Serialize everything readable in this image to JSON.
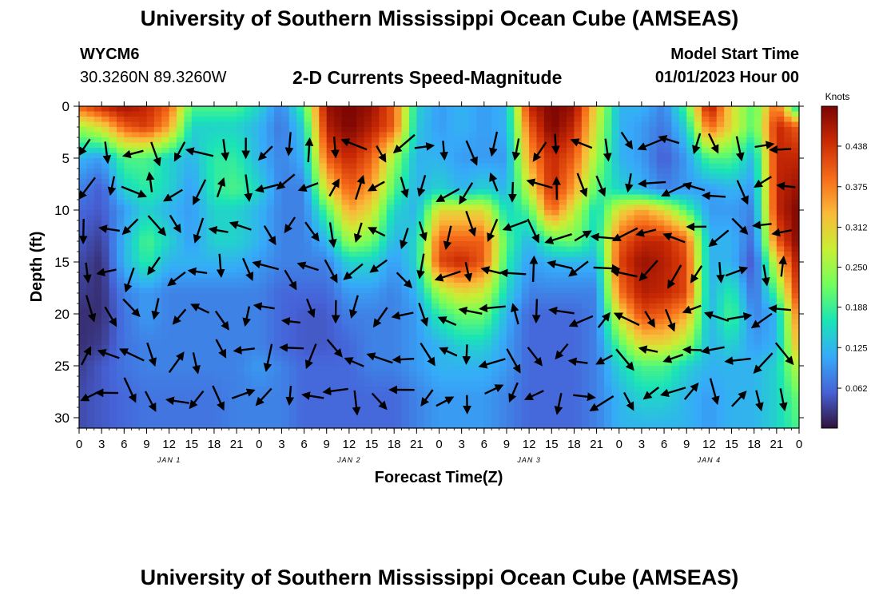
{
  "header": {
    "title": "University of Southern Mississippi Ocean Cube (AMSEAS)",
    "station": "WYCM6",
    "coords": "30.3260N  89.3260W",
    "subtitle": "2-D Currents Speed-Magnitude",
    "model_start_label": "Model Start Time",
    "model_start_value": "01/01/2023 Hour 00"
  },
  "footer": {
    "title": "University of Southern Mississippi Ocean Cube (AMSEAS)"
  },
  "chart_data": {
    "type": "heatmap",
    "title": "2-D Currents Speed-Magnitude",
    "xlabel": "Forecast Time(Z)",
    "ylabel": "Depth (ft)",
    "x_range_hours": [
      0,
      96
    ],
    "x_tick_hours": [
      0,
      3,
      6,
      9,
      12,
      15,
      18,
      21,
      24,
      27,
      30,
      33,
      36,
      39,
      42,
      45,
      48,
      51,
      54,
      57,
      60,
      63,
      66,
      69,
      72,
      75,
      78,
      81,
      84,
      87,
      90,
      93,
      96
    ],
    "x_tick_labels": [
      "0",
      "3",
      "6",
      "9",
      "12",
      "15",
      "18",
      "21",
      "0",
      "3",
      "6",
      "9",
      "12",
      "15",
      "18",
      "21",
      "0",
      "3",
      "6",
      "9",
      "12",
      "15",
      "18",
      "21",
      "0",
      "3",
      "6",
      "9",
      "12",
      "15",
      "18",
      "21",
      "0"
    ],
    "day_labels": [
      {
        "hour": 12,
        "label": "JAN 1"
      },
      {
        "hour": 36,
        "label": "JAN 2"
      },
      {
        "hour": 60,
        "label": "JAN 3"
      },
      {
        "hour": 84,
        "label": "JAN 4"
      }
    ],
    "y_range_ft": [
      0,
      31
    ],
    "y_ticks": [
      0,
      5,
      10,
      15,
      20,
      25,
      30
    ],
    "y_inverted": true,
    "colorbar": {
      "unit": "Knots",
      "range": [
        0,
        0.5
      ],
      "ticks": [
        0.062,
        0.125,
        0.188,
        0.25,
        0.312,
        0.375,
        0.438
      ],
      "tick_labels": [
        "0.062",
        "0.125",
        "0.188",
        "0.250",
        "0.312",
        "0.375",
        "0.438"
      ],
      "colors": [
        "#30123b",
        "#4662d7",
        "#36aaf9",
        "#1ae4b6",
        "#72fe5e",
        "#c8ef34",
        "#faba39",
        "#f66b19",
        "#ca2a04",
        "#7a0403"
      ]
    },
    "speed_column_hours": [
      0,
      3,
      6,
      9,
      12,
      15,
      18,
      21,
      24,
      27,
      30,
      33,
      36,
      39,
      42,
      45,
      48,
      51,
      54,
      57,
      60,
      63,
      66,
      69,
      72,
      75,
      78,
      81,
      84,
      87,
      90,
      93,
      96
    ],
    "speed_row_depths_ft": [
      0,
      2,
      5,
      8,
      10,
      13,
      15,
      18,
      20,
      23,
      25,
      28,
      31
    ],
    "speed_knots": [
      [
        0.4,
        0.45,
        0.48,
        0.45,
        0.4,
        0.2,
        0.2,
        0.2,
        0.15,
        0.08,
        0.2,
        0.48,
        0.5,
        0.48,
        0.4,
        0.15,
        0.1,
        0.12,
        0.1,
        0.12,
        0.45,
        0.5,
        0.48,
        0.3,
        0.12,
        0.12,
        0.08,
        0.2,
        0.48,
        0.3,
        0.2,
        0.4,
        0.12
      ],
      [
        0.25,
        0.3,
        0.4,
        0.43,
        0.35,
        0.15,
        0.15,
        0.15,
        0.12,
        0.07,
        0.15,
        0.46,
        0.5,
        0.46,
        0.4,
        0.14,
        0.1,
        0.12,
        0.1,
        0.12,
        0.4,
        0.5,
        0.45,
        0.28,
        0.12,
        0.1,
        0.07,
        0.15,
        0.4,
        0.3,
        0.2,
        0.45,
        0.4
      ],
      [
        0.12,
        0.1,
        0.2,
        0.2,
        0.15,
        0.12,
        0.18,
        0.18,
        0.12,
        0.08,
        0.12,
        0.4,
        0.45,
        0.4,
        0.25,
        0.12,
        0.12,
        0.1,
        0.1,
        0.1,
        0.35,
        0.45,
        0.4,
        0.25,
        0.12,
        0.1,
        0.05,
        0.1,
        0.2,
        0.2,
        0.12,
        0.45,
        0.45
      ],
      [
        0.08,
        0.05,
        0.15,
        0.18,
        0.15,
        0.1,
        0.18,
        0.2,
        0.15,
        0.08,
        0.08,
        0.3,
        0.4,
        0.35,
        0.2,
        0.12,
        0.15,
        0.12,
        0.15,
        0.12,
        0.28,
        0.45,
        0.35,
        0.2,
        0.15,
        0.12,
        0.08,
        0.1,
        0.1,
        0.12,
        0.1,
        0.45,
        0.48
      ],
      [
        0.06,
        0.05,
        0.1,
        0.15,
        0.12,
        0.1,
        0.15,
        0.15,
        0.12,
        0.08,
        0.08,
        0.2,
        0.35,
        0.3,
        0.15,
        0.12,
        0.3,
        0.3,
        0.3,
        0.15,
        0.2,
        0.4,
        0.28,
        0.15,
        0.3,
        0.35,
        0.3,
        0.2,
        0.1,
        0.1,
        0.08,
        0.45,
        0.5
      ],
      [
        0.05,
        0.03,
        0.12,
        0.2,
        0.15,
        0.1,
        0.15,
        0.15,
        0.12,
        0.08,
        0.08,
        0.12,
        0.25,
        0.22,
        0.12,
        0.15,
        0.4,
        0.4,
        0.4,
        0.2,
        0.12,
        0.2,
        0.22,
        0.15,
        0.4,
        0.45,
        0.45,
        0.4,
        0.12,
        0.12,
        0.06,
        0.4,
        0.5
      ],
      [
        0.04,
        0.02,
        0.12,
        0.18,
        0.12,
        0.12,
        0.12,
        0.12,
        0.1,
        0.08,
        0.08,
        0.08,
        0.15,
        0.15,
        0.1,
        0.15,
        0.42,
        0.45,
        0.4,
        0.18,
        0.1,
        0.12,
        0.12,
        0.12,
        0.42,
        0.48,
        0.46,
        0.42,
        0.12,
        0.12,
        0.04,
        0.3,
        0.48
      ],
      [
        0.03,
        0.02,
        0.08,
        0.1,
        0.08,
        0.08,
        0.08,
        0.08,
        0.08,
        0.06,
        0.06,
        0.06,
        0.1,
        0.1,
        0.08,
        0.12,
        0.25,
        0.3,
        0.28,
        0.15,
        0.08,
        0.08,
        0.08,
        0.08,
        0.38,
        0.46,
        0.45,
        0.42,
        0.12,
        0.18,
        0.06,
        0.2,
        0.45
      ],
      [
        0.02,
        0.02,
        0.07,
        0.1,
        0.08,
        0.08,
        0.08,
        0.08,
        0.08,
        0.06,
        0.05,
        0.05,
        0.08,
        0.08,
        0.08,
        0.1,
        0.18,
        0.22,
        0.22,
        0.12,
        0.06,
        0.06,
        0.06,
        0.08,
        0.3,
        0.42,
        0.4,
        0.35,
        0.12,
        0.2,
        0.08,
        0.12,
        0.4
      ],
      [
        0.02,
        0.03,
        0.07,
        0.08,
        0.08,
        0.08,
        0.08,
        0.08,
        0.08,
        0.06,
        0.05,
        0.05,
        0.06,
        0.08,
        0.08,
        0.1,
        0.12,
        0.15,
        0.15,
        0.1,
        0.06,
        0.06,
        0.06,
        0.08,
        0.2,
        0.3,
        0.3,
        0.25,
        0.12,
        0.15,
        0.1,
        0.12,
        0.35
      ],
      [
        0.03,
        0.05,
        0.07,
        0.08,
        0.08,
        0.08,
        0.08,
        0.08,
        0.1,
        0.08,
        0.06,
        0.06,
        0.06,
        0.08,
        0.08,
        0.1,
        0.12,
        0.12,
        0.12,
        0.1,
        0.06,
        0.06,
        0.06,
        0.08,
        0.15,
        0.2,
        0.2,
        0.15,
        0.12,
        0.12,
        0.12,
        0.15,
        0.28
      ],
      [
        0.04,
        0.05,
        0.06,
        0.07,
        0.07,
        0.07,
        0.07,
        0.08,
        0.08,
        0.08,
        0.06,
        0.06,
        0.06,
        0.06,
        0.06,
        0.08,
        0.1,
        0.1,
        0.1,
        0.08,
        0.06,
        0.06,
        0.06,
        0.08,
        0.12,
        0.15,
        0.15,
        0.12,
        0.1,
        0.12,
        0.12,
        0.15,
        0.22
      ],
      [
        0.04,
        0.05,
        0.06,
        0.07,
        0.07,
        0.07,
        0.07,
        0.08,
        0.08,
        0.08,
        0.06,
        0.06,
        0.06,
        0.06,
        0.06,
        0.08,
        0.1,
        0.1,
        0.1,
        0.08,
        0.06,
        0.06,
        0.06,
        0.08,
        0.12,
        0.12,
        0.12,
        0.12,
        0.1,
        0.12,
        0.12,
        0.15,
        0.2
      ]
    ]
  }
}
